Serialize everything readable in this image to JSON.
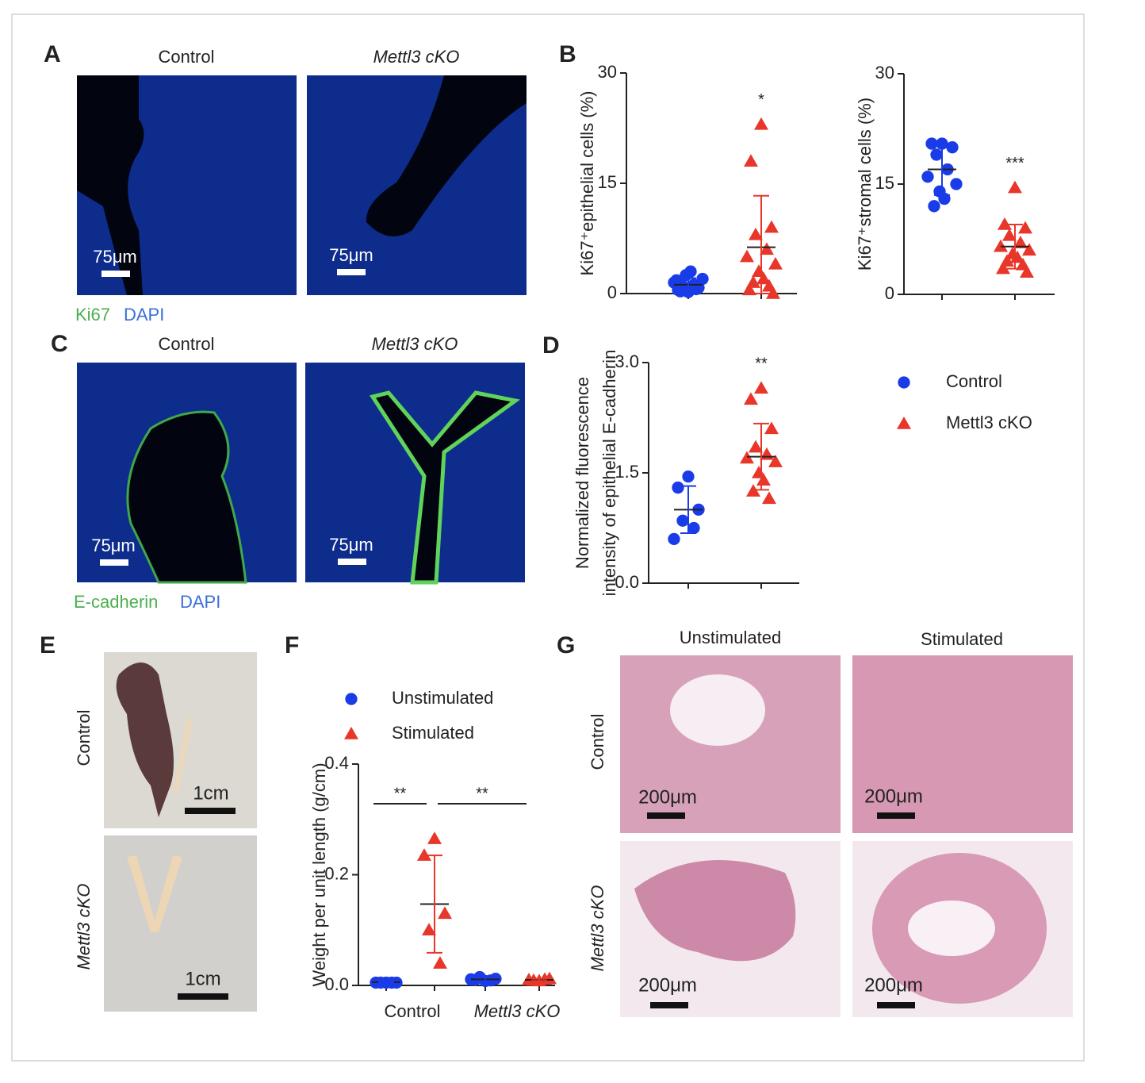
{
  "panel_labels": [
    "A",
    "B",
    "C",
    "D",
    "E",
    "F",
    "G"
  ],
  "panel_a": {
    "columns": [
      "Control",
      "Mettl3 cKO"
    ],
    "scale_bar": "75μm",
    "stain": [
      "Ki67",
      "DAPI"
    ]
  },
  "panel_c": {
    "columns": [
      "Control",
      "Mettl3 cKO"
    ],
    "scale_bar": "75μm",
    "stain": [
      "E-cadherin",
      "DAPI"
    ]
  },
  "panel_e": {
    "rows": [
      "Control",
      "Mettl3 cKO"
    ],
    "scale_bar": "1cm"
  },
  "panel_g": {
    "columns": [
      "Unstimulated",
      "Stimulated"
    ],
    "rows": [
      "Control",
      "Mettl3 cKO"
    ],
    "scale_bar": "200μm"
  },
  "legend": [
    {
      "name": "Control",
      "color": "#1a3be8",
      "marker": "circle"
    },
    {
      "name": "Mettl3 cKO",
      "color": "#e8372a",
      "marker": "triangle"
    }
  ],
  "chart_data": [
    {
      "type": "dotplot",
      "ylabel": [
        "Ki67⁺epithelial cells (%)"
      ],
      "ylim": [
        0,
        30
      ],
      "yticks": [
        0,
        15,
        30
      ],
      "series": [
        {
          "values": [
            0.2,
            0.5,
            0.8,
            1.0,
            1.2,
            1.5,
            2.0,
            2.5,
            3.0,
            0.3,
            0.6,
            1.8
          ],
          "mean": 1.2,
          "sd": 0.9
        },
        {
          "values": [
            23,
            18,
            9,
            8,
            6,
            5,
            4,
            3,
            2,
            1.5,
            1,
            0.5,
            0
          ],
          "mean": 6.3,
          "sd": 7,
          "significance": "*"
        }
      ]
    },
    {
      "type": "dotplot",
      "ylabel": [
        "Ki67⁺stromal cells (%)"
      ],
      "ylim": [
        0,
        30
      ],
      "yticks": [
        0,
        15,
        30
      ],
      "series": [
        {
          "values": [
            20.5,
            20.5,
            20,
            19,
            17,
            16,
            15,
            14,
            13,
            12
          ],
          "mean": 17,
          "sd": 3.5
        },
        {
          "values": [
            14.5,
            9.5,
            9,
            8,
            7,
            6.5,
            6,
            5.5,
            5,
            4.5,
            4,
            3.5,
            3
          ],
          "mean": 6.5,
          "sd": 3,
          "significance": "***"
        }
      ]
    },
    {
      "type": "dotplot",
      "ylabel": [
        "Normalized fluorescence",
        "intensity of epithelial E-cadherin"
      ],
      "ylim": [
        0,
        3
      ],
      "yticks": [
        {
          "value": 0,
          "label": "0.0"
        },
        {
          "value": 1.5,
          "label": "1.5"
        },
        {
          "value": 3,
          "label": "3.0"
        }
      ],
      "legend": true,
      "series": [
        {
          "values": [
            1.45,
            1.3,
            1.0,
            0.85,
            0.75,
            0.6
          ],
          "mean": 1.0,
          "sd": 0.32
        },
        {
          "values": [
            2.65,
            2.5,
            2.1,
            1.85,
            1.75,
            1.7,
            1.65,
            1.5,
            1.4,
            1.25,
            1.15
          ],
          "mean": 1.72,
          "sd": 0.45,
          "significance": "**"
        }
      ]
    },
    {
      "type": "grouped-dotplot",
      "ylabel": [
        "Weight per unit length (g/cm)"
      ],
      "ylim": [
        0,
        0.4
      ],
      "yticks": [
        {
          "value": 0,
          "label": "0.0"
        },
        {
          "value": 0.2,
          "label": "0.2"
        },
        {
          "value": 0.4,
          "label": "0.4"
        }
      ],
      "categories": [
        "Control",
        "Mettl3 cKO"
      ],
      "significance": [
        "**",
        "**"
      ],
      "series": [
        {
          "name": "Unstimulated",
          "color": "#1a3be8",
          "marker": "circle",
          "groups": [
            {
              "values": [
                0.005,
                0.005,
                0.005,
                0.005,
                0.005
              ],
              "mean": 0.006,
              "sd": 0.001
            },
            {
              "values": [
                0.008,
                0.01,
                0.012,
                0.015,
                0.009,
                0.011
              ],
              "mean": 0.011,
              "sd": 0.003
            }
          ]
        },
        {
          "name": "Stimulated",
          "color": "#e8372a",
          "marker": "triangle",
          "groups": [
            {
              "values": [
                0.265,
                0.235,
                0.13,
                0.1,
                0.04
              ],
              "mean": 0.147,
              "sd": 0.088
            },
            {
              "values": [
                0.008,
                0.01,
                0.012,
                0.009,
                0.011
              ],
              "mean": 0.01,
              "sd": 0.002
            }
          ]
        }
      ]
    }
  ]
}
